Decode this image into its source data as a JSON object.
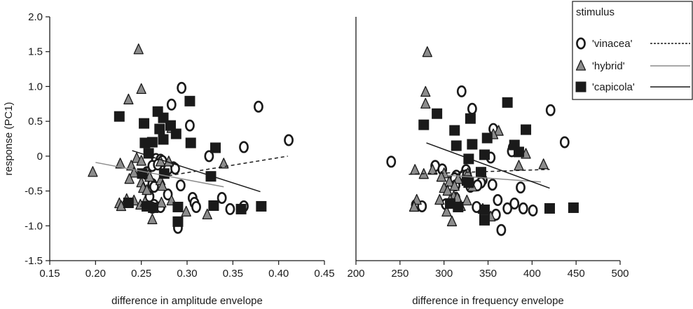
{
  "chart_data": [
    {
      "type": "scatter",
      "xlabel": "difference in amplitude envelope",
      "ylabel": "response  (PC1)",
      "xlim": [
        0.15,
        0.45
      ],
      "ylim": [
        -1.5,
        2.0
      ],
      "xticks": [
        "0.15",
        "0.20",
        "0.25",
        "0.30",
        "0.35",
        "0.40",
        "0.45"
      ],
      "yticks": [
        "-1.5",
        "-1.0",
        "-0.5",
        "0",
        "0.5",
        "1.0",
        "1.5",
        "2.0"
      ],
      "grid": false,
      "series": [
        {
          "name": "'vinacea'",
          "marker": "circle",
          "trend": [
            [
              0.28,
              -0.28
            ],
            [
              0.41,
              0.0
            ]
          ],
          "points": [
            [
              0.294,
              0.98
            ],
            [
              0.283,
              0.74
            ],
            [
              0.303,
              0.44
            ],
            [
              0.378,
              0.71
            ],
            [
              0.411,
              0.23
            ],
            [
              0.362,
              0.13
            ],
            [
              0.266,
              -0.04
            ],
            [
              0.271,
              -0.05
            ],
            [
              0.273,
              -0.07
            ],
            [
              0.285,
              -0.16
            ],
            [
              0.279,
              -0.19
            ],
            [
              0.256,
              -0.23
            ],
            [
              0.262,
              -0.14
            ],
            [
              0.268,
              -0.12
            ],
            [
              0.324,
              0.0
            ],
            [
              0.287,
              -0.18
            ],
            [
              0.279,
              -0.55
            ],
            [
              0.262,
              -0.4
            ],
            [
              0.264,
              -0.44
            ],
            [
              0.293,
              -0.42
            ],
            [
              0.259,
              -0.58
            ],
            [
              0.264,
              -0.7
            ],
            [
              0.262,
              -0.74
            ],
            [
              0.271,
              -0.73
            ],
            [
              0.306,
              -0.6
            ],
            [
              0.308,
              -0.67
            ],
            [
              0.31,
              -0.73
            ],
            [
              0.29,
              -1.03
            ],
            [
              0.347,
              -0.76
            ],
            [
              0.362,
              -0.72
            ],
            [
              0.338,
              -0.6
            ]
          ]
        },
        {
          "name": "'hybrid'",
          "marker": "triangle",
          "trend": [
            [
              0.2,
              -0.09
            ],
            [
              0.34,
              -0.44
            ]
          ],
          "points": [
            [
              0.247,
              1.53
            ],
            [
              0.25,
              0.96
            ],
            [
              0.236,
              0.81
            ],
            [
              0.283,
              0.4
            ],
            [
              0.197,
              -0.23
            ],
            [
              0.227,
              -0.11
            ],
            [
              0.245,
              -0.03
            ],
            [
              0.25,
              -0.07
            ],
            [
              0.239,
              -0.14
            ],
            [
              0.242,
              -0.24
            ],
            [
              0.258,
              -0.27
            ],
            [
              0.259,
              -0.3
            ],
            [
              0.271,
              -0.08
            ],
            [
              0.28,
              -0.08
            ],
            [
              0.34,
              -0.11
            ],
            [
              0.237,
              -0.33
            ],
            [
              0.25,
              -0.38
            ],
            [
              0.271,
              -0.35
            ],
            [
              0.273,
              -0.43
            ],
            [
              0.252,
              -0.46
            ],
            [
              0.256,
              -0.49
            ],
            [
              0.234,
              -0.62
            ],
            [
              0.242,
              -0.64
            ],
            [
              0.226,
              -0.68
            ],
            [
              0.228,
              -0.72
            ],
            [
              0.249,
              -0.7
            ],
            [
              0.254,
              -0.66
            ],
            [
              0.272,
              -0.67
            ],
            [
              0.283,
              -0.64
            ],
            [
              0.299,
              -0.8
            ],
            [
              0.322,
              -0.84
            ],
            [
              0.262,
              -0.91
            ]
          ]
        },
        {
          "name": "'capicola'",
          "marker": "square",
          "trend": [
            [
              0.24,
              0.08
            ],
            [
              0.38,
              -0.51
            ]
          ],
          "points": [
            [
              0.226,
              0.57
            ],
            [
              0.268,
              0.64
            ],
            [
              0.274,
              0.55
            ],
            [
              0.303,
              0.79
            ],
            [
              0.253,
              0.47
            ],
            [
              0.27,
              0.39
            ],
            [
              0.282,
              0.44
            ],
            [
              0.288,
              0.32
            ],
            [
              0.262,
              0.2
            ],
            [
              0.274,
              0.24
            ],
            [
              0.304,
              0.19
            ],
            [
              0.254,
              0.19
            ],
            [
              0.258,
              0.04
            ],
            [
              0.331,
              0.12
            ],
            [
              0.251,
              -0.25
            ],
            [
              0.275,
              -0.25
            ],
            [
              0.326,
              -0.29
            ],
            [
              0.236,
              -0.67
            ],
            [
              0.256,
              -0.72
            ],
            [
              0.263,
              -0.74
            ],
            [
              0.29,
              -0.73
            ],
            [
              0.329,
              -0.71
            ],
            [
              0.359,
              -0.76
            ],
            [
              0.381,
              -0.72
            ],
            [
              0.29,
              -0.94
            ]
          ]
        }
      ]
    },
    {
      "type": "scatter",
      "xlabel": "difference in frequency envelope",
      "ylabel": "",
      "xlim": [
        200,
        500
      ],
      "ylim": [
        -1.5,
        2.0
      ],
      "xticks": [
        "200",
        "250",
        "300",
        "350",
        "400",
        "450",
        "500"
      ],
      "yticks": [],
      "grid": false,
      "legend": {
        "title": "stimulus",
        "placement": "top-right",
        "entries": [
          "'vinacea'",
          "'hybrid'",
          "'capicola'"
        ],
        "line_styles": [
          "dashed",
          "solid-gray",
          "solid-black"
        ]
      },
      "series": [
        {
          "name": "'vinacea'",
          "marker": "circle",
          "trend": [
            [
              260,
              -0.26
            ],
            [
              420,
              -0.19
            ]
          ],
          "points": [
            [
              320,
              0.93
            ],
            [
              332,
              0.68
            ],
            [
              421,
              0.66
            ],
            [
              437,
              0.2
            ],
            [
              356,
              0.39
            ],
            [
              378,
              0.12
            ],
            [
              377,
              0.07
            ],
            [
              240,
              -0.08
            ],
            [
              290,
              -0.14
            ],
            [
              298,
              -0.19
            ],
            [
              314,
              -0.28
            ],
            [
              325,
              -0.2
            ],
            [
              353,
              -0.02
            ],
            [
              322,
              -0.28
            ],
            [
              326,
              -0.27
            ],
            [
              312,
              -0.32
            ],
            [
              344,
              -0.34
            ],
            [
              313,
              -0.42
            ],
            [
              330,
              -0.44
            ],
            [
              355,
              -0.41
            ],
            [
              342,
              -0.38
            ],
            [
              338,
              -0.42
            ],
            [
              387,
              -0.45
            ],
            [
              268,
              -0.7
            ],
            [
              275,
              -0.72
            ],
            [
              313,
              -0.6
            ],
            [
              302,
              -0.69
            ],
            [
              361,
              -0.63
            ],
            [
              372,
              -0.75
            ],
            [
              390,
              -0.75
            ],
            [
              401,
              -0.78
            ],
            [
              337,
              -0.73
            ],
            [
              359,
              -0.84
            ],
            [
              365,
              -1.06
            ],
            [
              380,
              -0.68
            ]
          ]
        },
        {
          "name": "'hybrid'",
          "marker": "triangle",
          "trend": [
            [
              300,
              -0.27
            ],
            [
              410,
              -0.37
            ]
          ],
          "points": [
            [
              281,
              1.49
            ],
            [
              279,
              0.92
            ],
            [
              279,
              0.75
            ],
            [
              362,
              0.36
            ],
            [
              356,
              0.31
            ],
            [
              393,
              0.03
            ],
            [
              413,
              -0.12
            ],
            [
              385,
              -0.14
            ],
            [
              267,
              -0.2
            ],
            [
              287,
              -0.2
            ],
            [
              300,
              -0.25
            ],
            [
              277,
              -0.26
            ],
            [
              327,
              -0.25
            ],
            [
              297,
              -0.3
            ],
            [
              306,
              -0.37
            ],
            [
              316,
              -0.33
            ],
            [
              332,
              -0.44
            ],
            [
              300,
              -0.46
            ],
            [
              312,
              -0.43
            ],
            [
              304,
              -0.5
            ],
            [
              311,
              -0.58
            ],
            [
              315,
              -0.6
            ],
            [
              295,
              -0.63
            ],
            [
              307,
              -0.63
            ],
            [
              326,
              -0.64
            ],
            [
              269,
              -0.63
            ],
            [
              266,
              -0.73
            ],
            [
              303,
              -0.8
            ],
            [
              309,
              -0.94
            ],
            [
              319,
              -0.72
            ],
            [
              353,
              -0.87
            ],
            [
              344,
              -0.76
            ]
          ]
        },
        {
          "name": "'capicola'",
          "marker": "square",
          "trend": [
            [
              280,
              0.19
            ],
            [
              420,
              -0.46
            ]
          ],
          "points": [
            [
              277,
              0.45
            ],
            [
              292,
              0.61
            ],
            [
              330,
              0.54
            ],
            [
              312,
              0.37
            ],
            [
              372,
              0.77
            ],
            [
              349,
              0.26
            ],
            [
              380,
              0.16
            ],
            [
              393,
              0.38
            ],
            [
              314,
              0.15
            ],
            [
              332,
              0.17
            ],
            [
              346,
              0.02
            ],
            [
              385,
              0.06
            ],
            [
              328,
              -0.04
            ],
            [
              342,
              -0.23
            ],
            [
              328,
              -0.38
            ],
            [
              307,
              -0.68
            ],
            [
              316,
              -0.73
            ],
            [
              346,
              -0.77
            ],
            [
              346,
              -0.92
            ],
            [
              420,
              -0.75
            ],
            [
              447,
              -0.74
            ],
            [
              326,
              -0.35
            ]
          ]
        }
      ]
    }
  ]
}
